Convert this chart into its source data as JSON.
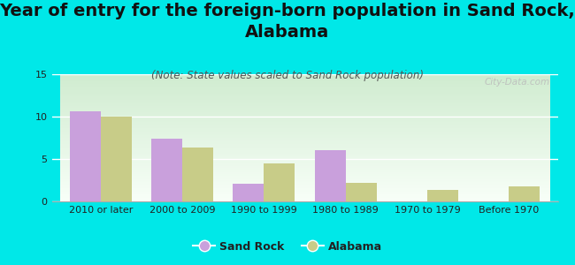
{
  "title": "Year of entry for the foreign-born population in Sand Rock,\nAlabama",
  "subtitle": "(Note: State values scaled to Sand Rock population)",
  "categories": [
    "2010 or later",
    "2000 to 2009",
    "1990 to 1999",
    "1980 to 1989",
    "1970 to 1979",
    "Before 1970"
  ],
  "sand_rock": [
    10.6,
    7.4,
    2.1,
    6.0,
    0,
    0
  ],
  "alabama": [
    10.0,
    6.4,
    4.5,
    2.2,
    1.4,
    1.8
  ],
  "sand_rock_color": "#c9a0dc",
  "alabama_color": "#c8cc88",
  "background_color": "#00e8e8",
  "plot_bg_top": "#d0ecd0",
  "plot_bg_bottom": "#f8fff8",
  "ylim": [
    0,
    15
  ],
  "yticks": [
    0,
    5,
    10,
    15
  ],
  "bar_width": 0.38,
  "legend_labels": [
    "Sand Rock",
    "Alabama"
  ],
  "watermark": "City-Data.com",
  "title_fontsize": 14,
  "subtitle_fontsize": 8.5,
  "tick_fontsize": 8,
  "legend_fontsize": 9
}
